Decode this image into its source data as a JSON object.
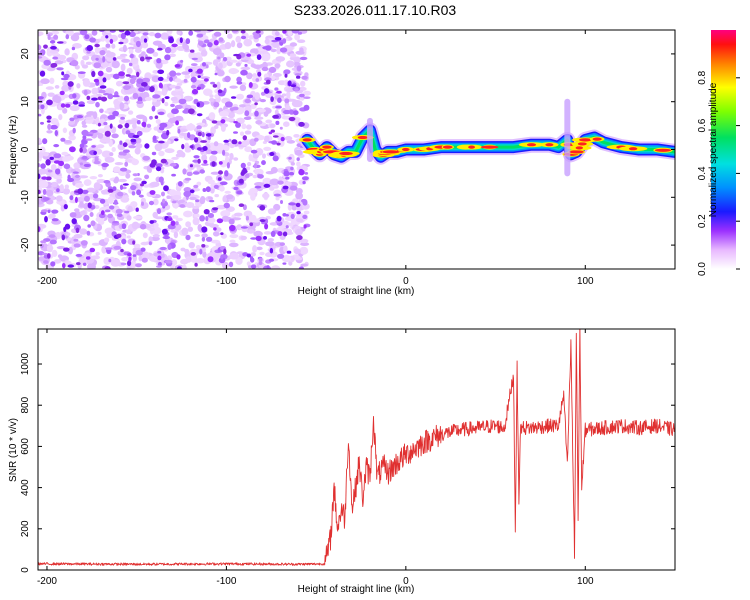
{
  "title": "S233.2026.011.17.10.R03",
  "chart_data": [
    {
      "type": "heatmap",
      "xlabel": "Height of straight line (km)",
      "ylabel": "Frequency (Hz)",
      "xlim": [
        -205,
        150
      ],
      "ylim": [
        -25,
        25
      ],
      "xticks": [
        -200,
        -100,
        0,
        100
      ],
      "yticks": [
        20,
        10,
        0,
        -10,
        -20
      ],
      "noise_region": {
        "x_range": [
          -205,
          -55
        ],
        "y_range": [
          -25,
          25
        ]
      },
      "ridge": {
        "x": [
          -55,
          -52,
          -48,
          -44,
          -40,
          -36,
          -32,
          -28,
          -24,
          -20,
          -17,
          -14,
          -10,
          -5,
          0,
          10,
          20,
          30,
          40,
          50,
          60,
          70,
          80,
          85,
          90,
          92,
          95,
          100,
          105,
          110,
          120,
          130,
          140,
          150
        ],
        "y": [
          2.0,
          0.5,
          -1.0,
          0.5,
          -1.0,
          -1.5,
          -0.5,
          -0.5,
          2.5,
          4.0,
          0.0,
          -1.5,
          -0.5,
          -0.5,
          0.0,
          0.0,
          0.5,
          0.5,
          0.5,
          0.5,
          0.5,
          1.0,
          1.0,
          0.5,
          2.0,
          -1.0,
          -0.5,
          2.0,
          2.5,
          1.5,
          0.5,
          0.0,
          0.0,
          -0.5
        ]
      },
      "colorbar": {
        "label": "Normalized spectral amplitude",
        "ticks": [
          "0.0",
          "0.2",
          "0.4",
          "0.6",
          "0.8"
        ],
        "range": [
          0,
          1
        ]
      }
    },
    {
      "type": "line",
      "xlabel": "Height of straight line (km)",
      "ylabel": "SNR (10 * v/v)",
      "xlim": [
        -205,
        150
      ],
      "ylim": [
        0,
        1170
      ],
      "xticks": [
        -200,
        -100,
        0,
        100
      ],
      "yticks": [
        0,
        200,
        400,
        600,
        800,
        1000
      ],
      "color": "#e03030",
      "series": [
        {
          "name": "SNR",
          "x": [
            -205,
            -150,
            -100,
            -60,
            -45,
            -42,
            -40,
            -38,
            -36,
            -34,
            -32,
            -30,
            -28,
            -26,
            -24,
            -22,
            -20,
            -18,
            -16,
            -14,
            -12,
            -10,
            -5,
            0,
            10,
            20,
            30,
            40,
            50,
            55,
            60,
            61,
            62,
            63,
            64,
            65,
            70,
            80,
            85,
            88,
            90,
            92,
            94,
            95,
            96,
            97,
            98,
            100,
            110,
            120,
            130,
            140,
            150
          ],
          "y": [
            30,
            28,
            30,
            28,
            30,
            150,
            400,
            200,
            300,
            250,
            650,
            300,
            400,
            520,
            350,
            500,
            450,
            740,
            450,
            480,
            500,
            470,
            520,
            560,
            620,
            660,
            680,
            690,
            700,
            690,
            950,
            200,
            980,
            350,
            700,
            690,
            690,
            700,
            700,
            850,
            500,
            1100,
            60,
            1150,
            250,
            1170,
            400,
            680,
            690,
            700,
            690,
            700,
            680
          ]
        }
      ]
    }
  ]
}
